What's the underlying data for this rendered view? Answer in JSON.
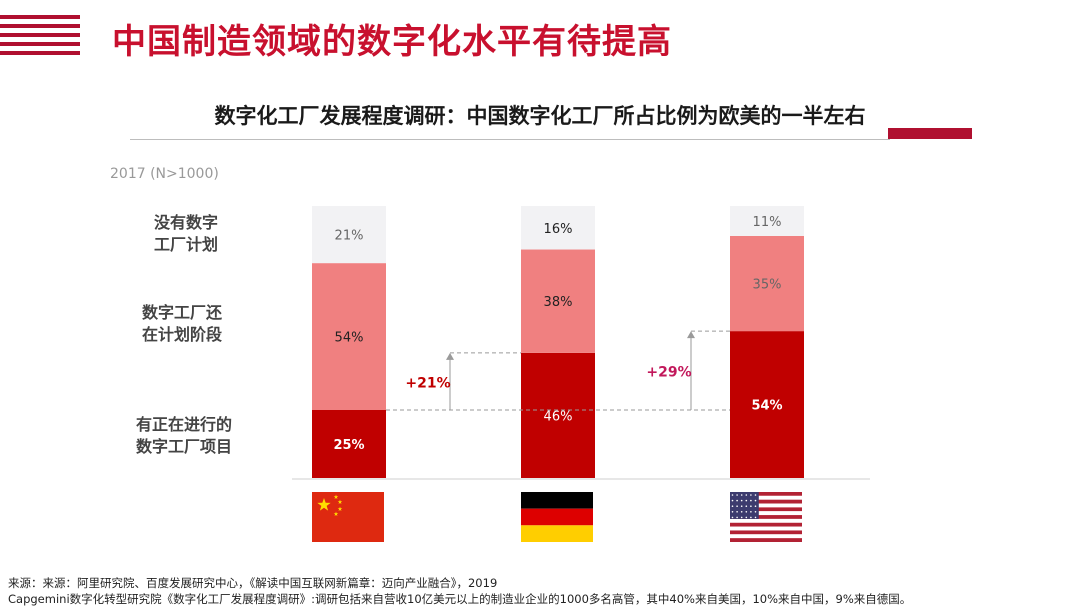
{
  "page": {
    "title": "中国制造领域的数字化水平有待提高",
    "subtitle": "数字化工厂发展程度调研：中国数字化工厂所占比例为欧美的一半左右",
    "year_note": "2017 (N>1000)",
    "row_labels": {
      "none": "没有数字工厂计划",
      "planning": "数字工厂还在计划阶段",
      "ongoing": "有正在进行的数字工厂项目"
    },
    "source_line1": "来源：来源：阿里研究院、百度发展研究中心，《解读中国互联网新篇章：迈向产业融合》，2019",
    "source_line2": "Capgemini数字化转型研究院《数字化工厂发展程度调研》:调研包括来自营收10亿美元以上的制造业企业的1000多名高管，其中40%来自美国，10%来自中国，9%来自德国。"
  },
  "colors": {
    "brand_red": "#c8102e",
    "ongoing": "#c00000",
    "planning": "#f08080",
    "none": "#f2f2f4"
  },
  "chart_data": {
    "type": "bar",
    "stacked": true,
    "unit": "%",
    "categories": [
      "中国",
      "德国",
      "美国"
    ],
    "category_icons": [
      "china-flag-icon",
      "germany-flag-icon",
      "usa-flag-icon"
    ],
    "series": [
      {
        "name": "有正在进行的数字工厂项目",
        "values": [
          25,
          46,
          54
        ]
      },
      {
        "name": "数字工厂还在计划阶段",
        "values": [
          54,
          38,
          35
        ]
      },
      {
        "name": "没有数字工厂计划",
        "values": [
          21,
          16,
          11
        ]
      }
    ],
    "annotations": [
      {
        "from": "中国",
        "to": "德国",
        "label": "+21%"
      },
      {
        "from": "中国",
        "to": "美国",
        "label": "+29%"
      }
    ],
    "ylim": [
      0,
      100
    ]
  }
}
